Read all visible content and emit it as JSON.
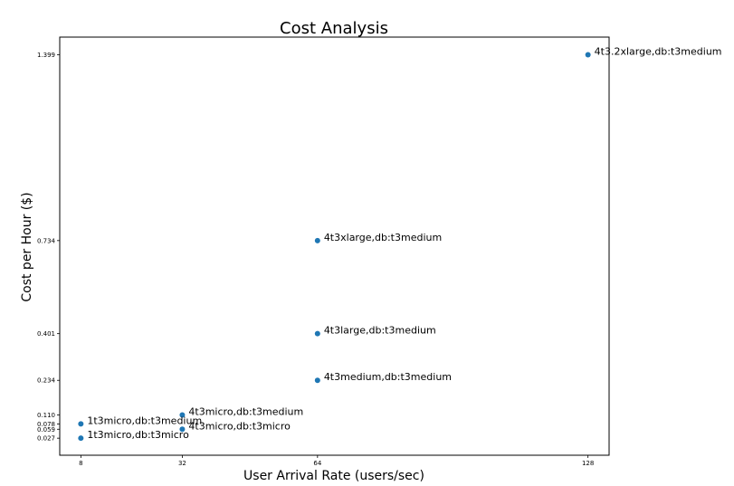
{
  "chart_data": {
    "type": "scatter",
    "title": "Cost Analysis",
    "xlabel": "User Arrival Rate (users/sec)",
    "ylabel": "Cost per Hour ($)",
    "xlim": [
      3.0,
      133.0
    ],
    "ylim": [
      -0.034,
      1.462
    ],
    "xticks": [
      8,
      32,
      64,
      128
    ],
    "xtick_labels": [
      "8",
      "32",
      "64",
      "128"
    ],
    "yticks": [
      0.027,
      0.059,
      0.078,
      0.11,
      0.234,
      0.401,
      0.734,
      1.399
    ],
    "ytick_labels": [
      "0.027",
      "0.059",
      "0.078",
      "0.110",
      "0.234",
      "0.401",
      "0.734",
      "1.399"
    ],
    "grid": false,
    "marker_color": "#1f77b4",
    "points": [
      {
        "x": 8,
        "y": 0.027,
        "label": "1t3micro,db:t3micro"
      },
      {
        "x": 8,
        "y": 0.078,
        "label": "1t3micro,db:t3medium"
      },
      {
        "x": 32,
        "y": 0.059,
        "label": "4t3micro,db:t3micro"
      },
      {
        "x": 32,
        "y": 0.11,
        "label": "4t3micro,db:t3medium"
      },
      {
        "x": 64,
        "y": 0.234,
        "label": "4t3medium,db:t3medium"
      },
      {
        "x": 64,
        "y": 0.401,
        "label": "4t3large,db:t3medium"
      },
      {
        "x": 64,
        "y": 0.734,
        "label": "4t3xlarge,db:t3medium"
      },
      {
        "x": 128,
        "y": 1.399,
        "label": "4t3.2xlarge,db:t3medium"
      }
    ]
  }
}
